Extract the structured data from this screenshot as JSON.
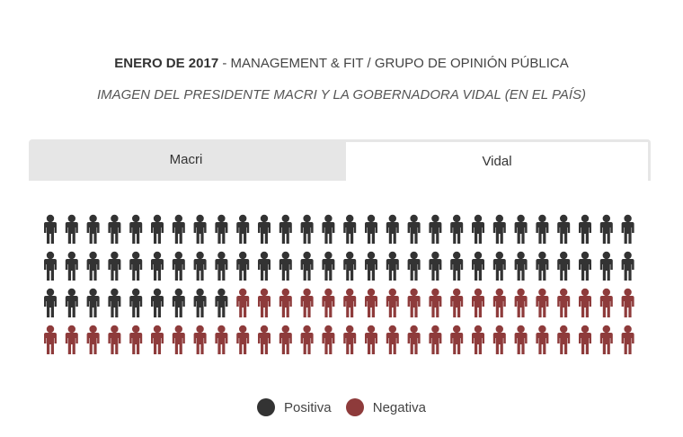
{
  "header": {
    "date": "ENERO DE 2017",
    "separator": "-",
    "source": "MANAGEMENT & FIT / GRUPO DE OPINIÓN PÚBLICA",
    "subtitle": "IMAGEN DEL PRESIDENTE MACRI Y LA GOBERNADORA VIDAL (EN EL PAÍS)"
  },
  "tabs": [
    {
      "label": "Macri",
      "selected": false
    },
    {
      "label": "Vidal",
      "selected": true
    }
  ],
  "colors": {
    "positiva": "#333333",
    "negativa": "#8e3b3b"
  },
  "chart_data": {
    "type": "pictograph",
    "unit": "person-icon",
    "total": 112,
    "series": [
      {
        "name": "Positiva",
        "value": 65,
        "color": "#333333"
      },
      {
        "name": "Negativa",
        "value": 47,
        "color": "#8e3b3b"
      }
    ],
    "legend_position": "bottom-center"
  },
  "legend": [
    {
      "label": "Positiva",
      "color": "#333333"
    },
    {
      "label": "Negativa",
      "color": "#8e3b3b"
    }
  ]
}
